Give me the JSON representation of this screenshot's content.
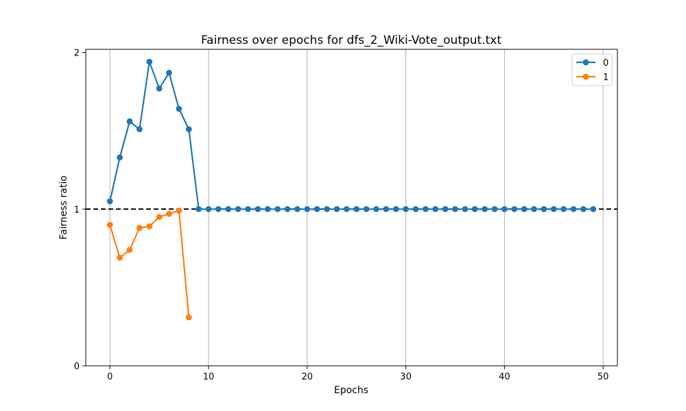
{
  "chart_data": {
    "type": "line",
    "title": "Fairness over epochs for dfs_2_Wiki-Vote_output.txt",
    "xlabel": "Epochs",
    "ylabel": "Fairness ratio",
    "xlim": [
      -2.45,
      51.45
    ],
    "ylim": [
      0,
      2.02
    ],
    "xticks": [
      0,
      10,
      20,
      30,
      40,
      50
    ],
    "yticks": [
      0,
      1,
      2
    ],
    "grid": "vertical",
    "legend_position": "top-right",
    "reference_line": {
      "y": 1,
      "style": "dashed",
      "color": "#000000"
    },
    "series": [
      {
        "name": "0",
        "color": "#1f77b4",
        "x": [
          0,
          1,
          2,
          3,
          4,
          5,
          6,
          7,
          8,
          9,
          10,
          11,
          12,
          13,
          14,
          15,
          16,
          17,
          18,
          19,
          20,
          21,
          22,
          23,
          24,
          25,
          26,
          27,
          28,
          29,
          30,
          31,
          32,
          33,
          34,
          35,
          36,
          37,
          38,
          39,
          40,
          41,
          42,
          43,
          44,
          45,
          46,
          47,
          48,
          49
        ],
        "values": [
          1.05,
          1.33,
          1.56,
          1.51,
          1.94,
          1.77,
          1.87,
          1.64,
          1.51,
          1,
          1,
          1,
          1,
          1,
          1,
          1,
          1,
          1,
          1,
          1,
          1,
          1,
          1,
          1,
          1,
          1,
          1,
          1,
          1,
          1,
          1,
          1,
          1,
          1,
          1,
          1,
          1,
          1,
          1,
          1,
          1,
          1,
          1,
          1,
          1,
          1,
          1,
          1,
          1,
          1
        ]
      },
      {
        "name": "1",
        "color": "#ff7f0e",
        "x": [
          0,
          1,
          2,
          3,
          4,
          5,
          6,
          7,
          8
        ],
        "values": [
          0.9,
          0.69,
          0.74,
          0.88,
          0.89,
          0.95,
          0.97,
          0.99,
          0.31
        ]
      }
    ]
  }
}
